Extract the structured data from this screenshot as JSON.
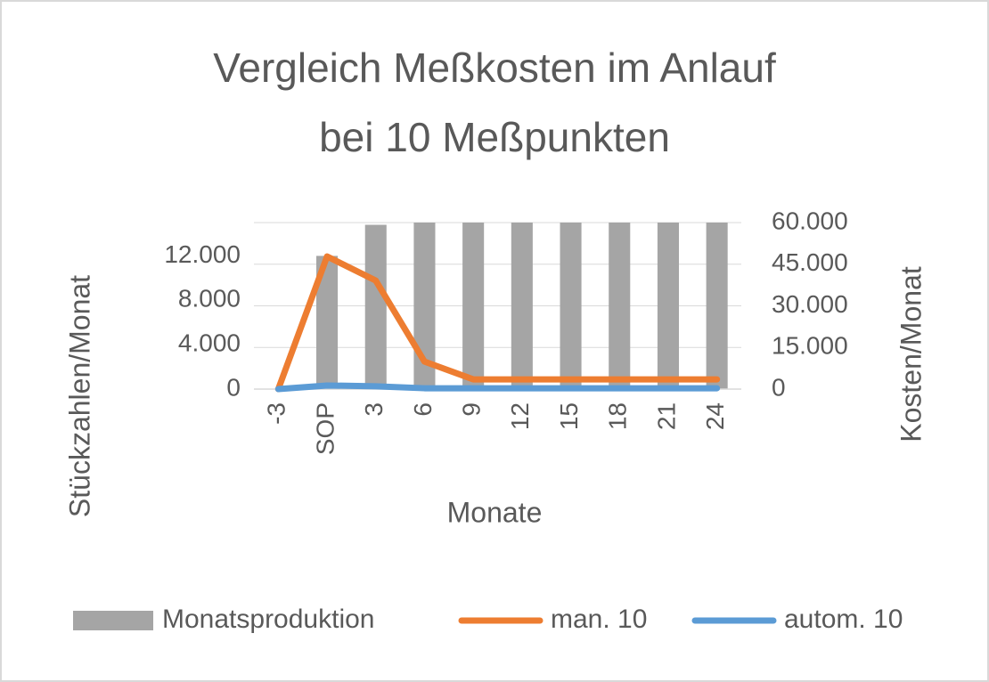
{
  "chart_data": {
    "type": "bar_line",
    "title": [
      "Vergleich Meßkosten im Anlauf",
      "bei 10 Meßpunkten"
    ],
    "x_label": "Monate",
    "y_label": "Stückzahlen/Monat",
    "y2_label": "Kosten/Monat",
    "categories": [
      "-3",
      "SOP",
      "3",
      "6",
      "9",
      "12",
      "15",
      "18",
      "21",
      "24"
    ],
    "series": [
      {
        "name": "Monatsproduktion",
        "type": "bar",
        "color": "#a5a5a5",
        "values": [
          0,
          12000,
          14800,
          15000,
          15000,
          15000,
          15000,
          15000,
          15000,
          15000
        ]
      },
      {
        "name": "man. 10",
        "type": "line",
        "axis": "y2",
        "color": "#ed7d31",
        "values": [
          0,
          47800,
          39100,
          9900,
          3500,
          3500,
          3500,
          3500,
          3500,
          3500
        ]
      },
      {
        "name": "autom. 10",
        "type": "line",
        "axis": "y2",
        "color": "#5b9bd5",
        "values": [
          0,
          1300,
          1000,
          300,
          300,
          300,
          300,
          300,
          300,
          300
        ]
      }
    ],
    "ylim": [
      0,
      15000
    ],
    "yticks": [
      0,
      {
        "value": 4000,
        "label": "4.000"
      },
      {
        "value": 8000,
        "label": "8.000"
      },
      {
        "value": 12000,
        "label": "12.000"
      }
    ],
    "y2lim": [
      0,
      60000
    ],
    "y2ticks": [
      0,
      {
        "value": 15000,
        "label": "15.000"
      },
      {
        "value": 30000,
        "label": "30.000"
      },
      {
        "value": 45000,
        "label": "45.000"
      },
      {
        "value": 60000,
        "label": "60.000"
      }
    ],
    "legend": "bottom"
  }
}
